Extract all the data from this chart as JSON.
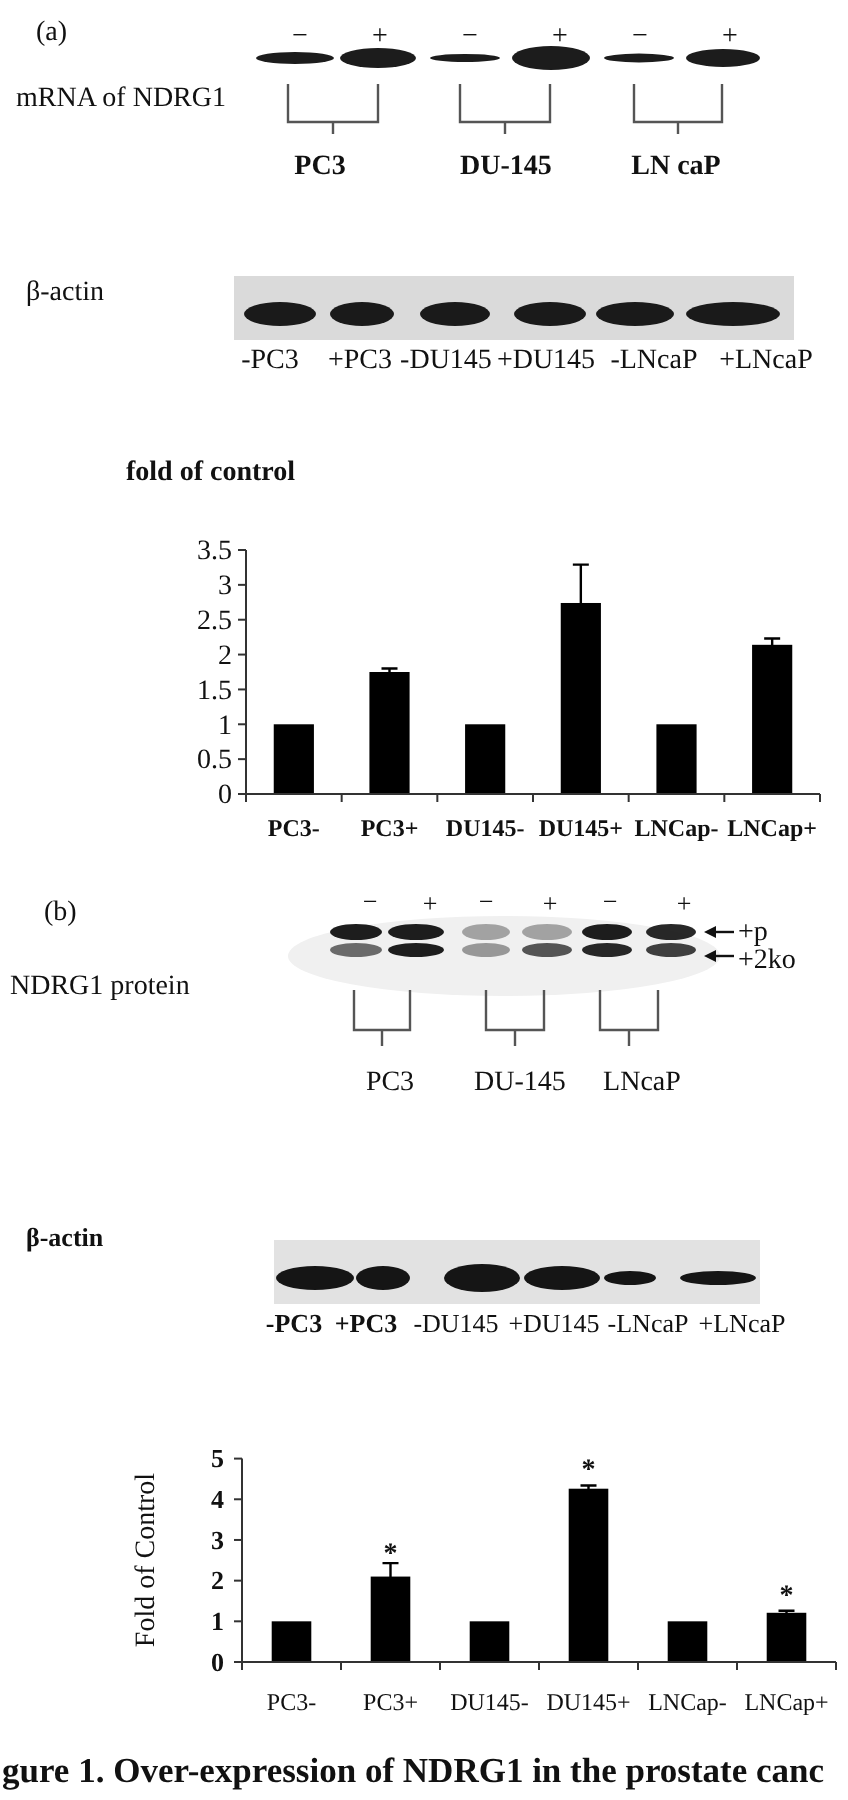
{
  "chart_data": [
    {
      "type": "other",
      "title": "(a)",
      "annotations": [
        "−",
        "+",
        "−",
        "+",
        "−",
        "+",
        "mRNA of NDRG1",
        "PC3",
        "DU-145",
        "LN caP",
        "β-actin",
        "-PC3",
        "+PC3",
        "-DU145",
        "+DU145",
        "-LNcaP",
        "+LNcaP"
      ]
    },
    {
      "type": "bar",
      "ylabel": "fold of control",
      "categories": [
        "PC3-",
        "PC3+",
        "DU145-",
        "DU145+",
        "LNCap-",
        "LNCap+"
      ],
      "values": [
        1,
        1.75,
        1,
        2.74,
        1,
        2.14
      ],
      "errors": [
        null,
        0.05,
        null,
        0.55,
        null,
        0.09
      ],
      "color": "#000000",
      "ylim": [
        0,
        3.5
      ],
      "yticks": [
        0,
        0.5,
        1,
        1.5,
        2,
        2.5,
        3,
        3.5
      ]
    },
    {
      "type": "other",
      "title": "(b)",
      "annotations": [
        "−",
        "+",
        "−",
        "+",
        "−",
        "+",
        "+p",
        "+2ko",
        "NDRG1 protein",
        "PC3",
        "DU-145",
        "LNcaP",
        "β-actin",
        "-PC3",
        "+PC3",
        "-DU145",
        "+DU145",
        "-LNcaP",
        "+LNcaP"
      ]
    },
    {
      "type": "bar",
      "ylabel": "Fold of Control",
      "categories": [
        "PC3-",
        "PC3+",
        "DU145-",
        "DU145+",
        "LNCap-",
        "LNCap+"
      ],
      "values": [
        1,
        2.1,
        1,
        4.26,
        1,
        1.21
      ],
      "errors": [
        null,
        0.33,
        null,
        0.08,
        null,
        0.05
      ],
      "color": "#000000",
      "ylim": [
        0,
        5
      ],
      "yticks": [
        0,
        1,
        2,
        3,
        4,
        5
      ],
      "annotations": [
        "*",
        "*",
        "*",
        "gure 1. Over-expression of NDRG1 in the prostate canc"
      ]
    }
  ]
}
